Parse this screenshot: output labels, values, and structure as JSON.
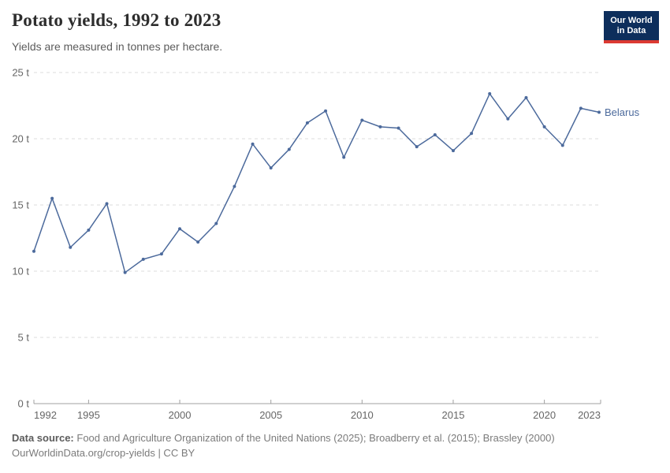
{
  "header": {
    "title": "Potato yields, 1992 to 2023",
    "subtitle": "Yields are measured in tonnes per hectare."
  },
  "logo": {
    "line1": "Our World",
    "line2": "in Data",
    "bg_color": "#0d2e5c",
    "bar_color": "#dc3a32"
  },
  "chart_data": {
    "type": "line",
    "title": "Potato yields, 1992 to 2023",
    "unit": "tonnes per hectare",
    "unit_short": "t",
    "x": [
      1992,
      1993,
      1994,
      1995,
      1996,
      1997,
      1998,
      1999,
      2000,
      2001,
      2002,
      2003,
      2004,
      2005,
      2006,
      2007,
      2008,
      2009,
      2010,
      2011,
      2012,
      2013,
      2014,
      2015,
      2016,
      2017,
      2018,
      2019,
      2020,
      2021,
      2022,
      2023
    ],
    "series": [
      {
        "name": "Belarus",
        "color": "#4C6A9C",
        "values": [
          11.5,
          15.5,
          11.8,
          13.1,
          15.1,
          9.9,
          10.9,
          11.3,
          13.2,
          12.2,
          13.6,
          16.4,
          19.6,
          17.8,
          19.2,
          21.2,
          22.1,
          18.6,
          21.4,
          20.9,
          20.8,
          19.4,
          20.3,
          19.1,
          20.4,
          23.4,
          21.5,
          23.1,
          20.9,
          19.5,
          22.3,
          22.0
        ]
      }
    ],
    "ylim": [
      0,
      25
    ],
    "yticks": [
      0,
      5,
      10,
      15,
      20,
      25
    ],
    "ytick_labels": [
      "0 t",
      "5 t",
      "10 t",
      "15 t",
      "20 t",
      "25 t"
    ],
    "xticks": [
      1992,
      1995,
      2000,
      2005,
      2010,
      2015,
      2020,
      2023
    ],
    "grid": "horizontal dashed",
    "legend_position": "end-of-line label",
    "axis_color": "#a0a0a0",
    "grid_color": "#dedede",
    "tick_label_color": "#666666"
  },
  "footer": {
    "source_label": "Data source:",
    "source_text": "Food and Agriculture Organization of the United Nations (2025); Broadberry et al. (2015); Brassley (2000)",
    "link_line": "OurWorldinData.org/crop-yields | CC BY"
  }
}
